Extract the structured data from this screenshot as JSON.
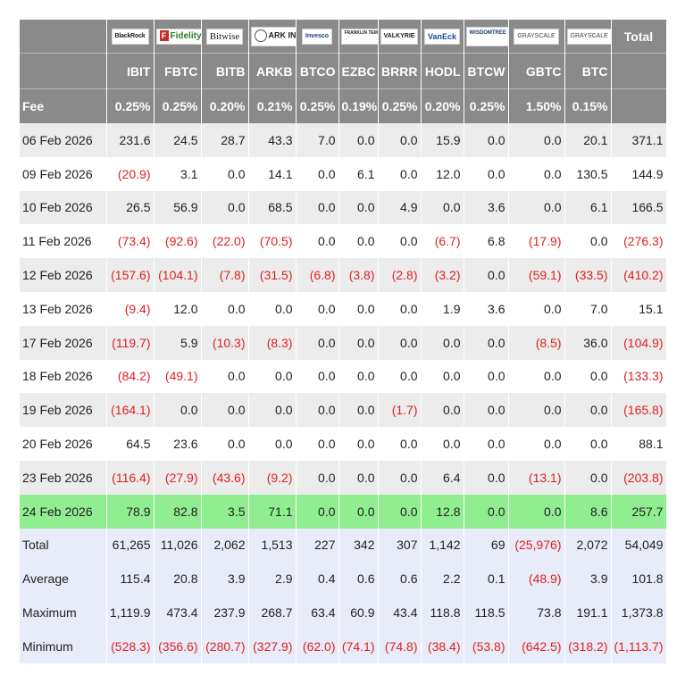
{
  "chart_data": {
    "type": "table",
    "issuer_logos": [
      "BlackRock",
      "Fidelity",
      "Bitwise",
      "ARK INVEST",
      "Invesco",
      "FRANKLIN TEMPLETON",
      "VALKYRIE",
      "VanEck",
      "WISDOMTREE",
      "GRAYSCALE",
      "GRAYSCALE"
    ],
    "total_label": "Total",
    "tickers": [
      "IBIT",
      "FBTC",
      "BITB",
      "ARKB",
      "BTCO",
      "EZBC",
      "BRRR",
      "HODL",
      "BTCW",
      "GBTC",
      "BTC"
    ],
    "fee_label": "Fee",
    "fees": [
      "0.25%",
      "0.25%",
      "0.20%",
      "0.21%",
      "0.25%",
      "0.19%",
      "0.25%",
      "0.20%",
      "0.25%",
      "1.50%",
      "0.15%"
    ],
    "rows": [
      {
        "date": "06 Feb 2026",
        "values": [
          "231.6",
          "24.5",
          "28.7",
          "43.3",
          "7.0",
          "0.0",
          "0.0",
          "15.9",
          "0.0",
          "0.0",
          "20.1"
        ],
        "total": "371.1"
      },
      {
        "date": "09 Feb 2026",
        "values": [
          "(20.9)",
          "3.1",
          "0.0",
          "14.1",
          "0.0",
          "6.1",
          "0.0",
          "12.0",
          "0.0",
          "0.0",
          "130.5"
        ],
        "total": "144.9"
      },
      {
        "date": "10 Feb 2026",
        "values": [
          "26.5",
          "56.9",
          "0.0",
          "68.5",
          "0.0",
          "0.0",
          "4.9",
          "0.0",
          "3.6",
          "0.0",
          "6.1"
        ],
        "total": "166.5"
      },
      {
        "date": "11 Feb 2026",
        "values": [
          "(73.4)",
          "(92.6)",
          "(22.0)",
          "(70.5)",
          "0.0",
          "0.0",
          "0.0",
          "(6.7)",
          "6.8",
          "(17.9)",
          "0.0"
        ],
        "total": "(276.3)"
      },
      {
        "date": "12 Feb 2026",
        "values": [
          "(157.6)",
          "(104.1)",
          "(7.8)",
          "(31.5)",
          "(6.8)",
          "(3.8)",
          "(2.8)",
          "(3.2)",
          "0.0",
          "(59.1)",
          "(33.5)"
        ],
        "total": "(410.2)"
      },
      {
        "date": "13 Feb 2026",
        "values": [
          "(9.4)",
          "12.0",
          "0.0",
          "0.0",
          "0.0",
          "0.0",
          "0.0",
          "1.9",
          "3.6",
          "0.0",
          "7.0"
        ],
        "total": "15.1"
      },
      {
        "date": "17 Feb 2026",
        "values": [
          "(119.7)",
          "5.9",
          "(10.3)",
          "(8.3)",
          "0.0",
          "0.0",
          "0.0",
          "0.0",
          "0.0",
          "(8.5)",
          "36.0"
        ],
        "total": "(104.9)"
      },
      {
        "date": "18 Feb 2026",
        "values": [
          "(84.2)",
          "(49.1)",
          "0.0",
          "0.0",
          "0.0",
          "0.0",
          "0.0",
          "0.0",
          "0.0",
          "0.0",
          "0.0"
        ],
        "total": "(133.3)"
      },
      {
        "date": "19 Feb 2026",
        "values": [
          "(164.1)",
          "0.0",
          "0.0",
          "0.0",
          "0.0",
          "0.0",
          "(1.7)",
          "0.0",
          "0.0",
          "0.0",
          "0.0"
        ],
        "total": "(165.8)"
      },
      {
        "date": "20 Feb 2026",
        "values": [
          "64.5",
          "23.6",
          "0.0",
          "0.0",
          "0.0",
          "0.0",
          "0.0",
          "0.0",
          "0.0",
          "0.0",
          "0.0"
        ],
        "total": "88.1"
      },
      {
        "date": "23 Feb 2026",
        "values": [
          "(116.4)",
          "(27.9)",
          "(43.6)",
          "(9.2)",
          "0.0",
          "0.0",
          "0.0",
          "6.4",
          "0.0",
          "(13.1)",
          "0.0"
        ],
        "total": "(203.8)"
      },
      {
        "date": "24 Feb 2026",
        "values": [
          "78.9",
          "82.8",
          "3.5",
          "71.1",
          "0.0",
          "0.0",
          "0.0",
          "12.8",
          "0.0",
          "0.0",
          "8.6"
        ],
        "total": "257.7",
        "highlight": true
      }
    ],
    "summary": [
      {
        "label": "Total",
        "values": [
          "61,265",
          "11,026",
          "2,062",
          "1,513",
          "227",
          "342",
          "307",
          "1,142",
          "69",
          "(25,976)",
          "2,072"
        ],
        "total": "54,049"
      },
      {
        "label": "Average",
        "values": [
          "115.4",
          "20.8",
          "3.9",
          "2.9",
          "0.4",
          "0.6",
          "0.6",
          "2.2",
          "0.1",
          "(48.9)",
          "3.9"
        ],
        "total": "101.8"
      },
      {
        "label": "Maximum",
        "values": [
          "1,119.9",
          "473.4",
          "237.9",
          "268.7",
          "63.4",
          "60.9",
          "43.4",
          "118.8",
          "118.5",
          "73.8",
          "191.1"
        ],
        "total": "1,373.8"
      },
      {
        "label": "Minimum",
        "values": [
          "(528.3)",
          "(356.6)",
          "(280.7)",
          "(327.9)",
          "(62.0)",
          "(74.1)",
          "(74.8)",
          "(38.4)",
          "(53.8)",
          "(642.5)",
          "(318.2)"
        ],
        "total": "(1,113.7)"
      }
    ],
    "colors": {
      "header_bg": "#8a8a8a",
      "row_alt_bg": "#ececec",
      "highlight_bg": "#90ee90",
      "summary_bg": "#e8ecf8",
      "negative_text": "#e02020"
    }
  }
}
